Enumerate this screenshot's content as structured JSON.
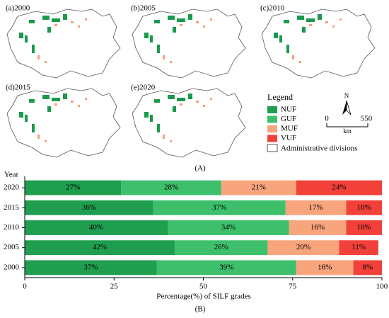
{
  "maps": {
    "panels": [
      {
        "label": "(a)2000"
      },
      {
        "label": "(b)2005"
      },
      {
        "label": "(c)2010"
      },
      {
        "label": "(d)2015"
      },
      {
        "label": "(e)2020"
      }
    ],
    "legend_title": "Legend",
    "boundary_label": "Administrative divisions",
    "north": "N",
    "scale_start": "0",
    "scale_end": "550",
    "scale_unit": "km",
    "caption": "(A)"
  },
  "chart_data": {
    "type": "stacked-barh",
    "caption": "(B)",
    "y_label": "Year",
    "x_label": "Percentage(%) of SILF grades",
    "categories": [
      "2020",
      "2015",
      "2010",
      "2005",
      "2000"
    ],
    "series": [
      {
        "name": "NUF",
        "color": "#1f9e4f",
        "values": [
          27,
          36,
          40,
          42,
          37
        ],
        "value_labels": [
          "27%",
          "36%",
          "40%",
          "42%",
          "37%"
        ]
      },
      {
        "name": "GUF",
        "color": "#3dbf6c",
        "values": [
          28,
          37,
          34,
          26,
          39
        ],
        "value_labels": [
          "28%",
          "37%",
          "34%",
          "26%",
          "39%"
        ]
      },
      {
        "name": "MUF",
        "color": "#f8a47c",
        "values": [
          21,
          17,
          16,
          20,
          16
        ],
        "value_labels": [
          "21%",
          "17%",
          "16%",
          "20%",
          "16%"
        ]
      },
      {
        "name": "VUF",
        "color": "#f2403a",
        "values": [
          24,
          10,
          10,
          11,
          8
        ],
        "value_labels": [
          "24%",
          "10%",
          "10%",
          "11%",
          "8%"
        ]
      }
    ],
    "xlim": [
      0,
      100
    ],
    "xticks": [
      0,
      25,
      50,
      75,
      100
    ]
  }
}
